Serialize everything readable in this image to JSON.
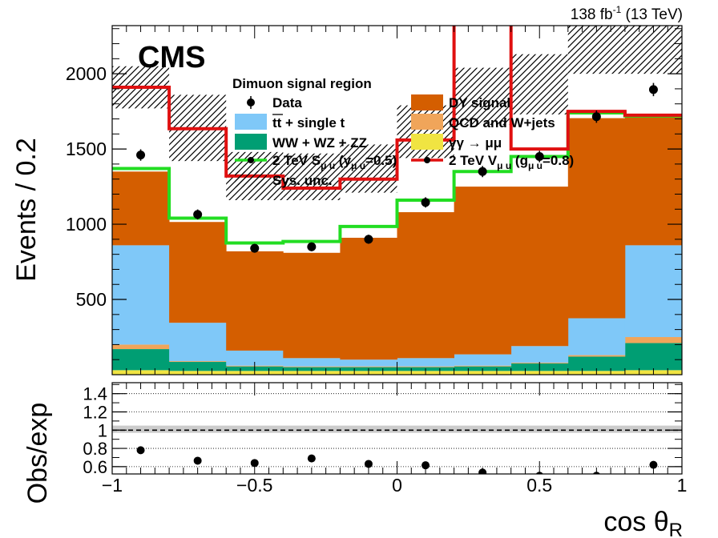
{
  "header": {
    "lumi": "138 fb",
    "lumi_sup": "-1",
    "energy": "(13 TeV)",
    "experiment": "CMS",
    "region": "Dimuon signal region"
  },
  "colors": {
    "dy": "#d45e00",
    "ttbar": "#7fc8f8",
    "diboson": "#009e73",
    "qcd": "#f0a55a",
    "gamgam": "#f0e442",
    "scalar": "#22dd22",
    "vector": "#e01010"
  },
  "chart_data": [
    {
      "type": "bar",
      "stacked": true,
      "bin_edges": [
        -1,
        -0.8,
        -0.6,
        -0.4,
        -0.2,
        0,
        0.2,
        0.4,
        0.6,
        0.8,
        1
      ],
      "xlim": [
        -1,
        1
      ],
      "ylim": [
        0,
        2320
      ],
      "yticks": [
        500,
        1000,
        1500,
        2000
      ],
      "ylabel": "Events / 0.2",
      "series": [
        {
          "key": "gamgam",
          "name": "γγ → μμ",
          "values": [
            30,
            25,
            25,
            25,
            25,
            25,
            25,
            25,
            25,
            30
          ]
        },
        {
          "key": "diboson",
          "name": "WW + WZ + ZZ",
          "values": [
            140,
            60,
            30,
            25,
            25,
            25,
            30,
            50,
            95,
            180
          ]
        },
        {
          "key": "qcd",
          "name": "QCD and W+jets",
          "values": [
            30,
            5,
            5,
            5,
            5,
            5,
            5,
            5,
            10,
            40
          ]
        },
        {
          "key": "ttbar",
          "name": "tt + single t",
          "values": [
            660,
            255,
            100,
            55,
            45,
            55,
            75,
            110,
            245,
            610
          ]
        },
        {
          "key": "dy",
          "name": "DY signal",
          "values": [
            490,
            670,
            660,
            700,
            810,
            970,
            1115,
            1060,
            1330,
            860
          ]
        }
      ],
      "data_points": {
        "name": "Data",
        "x": [
          -0.9,
          -0.7,
          -0.5,
          -0.3,
          -0.1,
          0.1,
          0.3,
          0.5,
          0.7,
          0.9
        ],
        "y": [
          1460,
          1065,
          840,
          850,
          900,
          1145,
          1350,
          1450,
          1715,
          1895
        ],
        "err": [
          38,
          33,
          29,
          29,
          30,
          34,
          37,
          38,
          41,
          44
        ]
      },
      "scalar_signal": {
        "name": "2 TeV S",
        "sub": "μ u",
        "coupling": "(y",
        "coupling_sub": "μ u",
        "coupling_val": "=0.5)",
        "values": [
          1370,
          1040,
          875,
          885,
          985,
          1160,
          1350,
          1450,
          1740,
          1720
        ]
      },
      "vector_signal": {
        "name": "2 TeV V",
        "sub": "μ u",
        "coupling": "(g",
        "coupling_sub": "μ u",
        "coupling_val": "=0.8)",
        "values": [
          1910,
          1635,
          1320,
          1240,
          1300,
          1560,
          3200,
          1500,
          1750,
          1725
        ]
      },
      "sys_unc": {
        "name": "Sys. unc.",
        "down": [
          1770,
          1420,
          1160,
          1160,
          1210,
          1440,
          1660,
          1730,
          2000,
          2000
        ],
        "up": [
          2050,
          1860,
          1480,
          1470,
          1530,
          1790,
          2040,
          2130,
          2320,
          2320
        ]
      },
      "legend_left": [
        "Data",
        "tt + single t",
        "WW + WZ + ZZ",
        "2 TeV S",
        "Sys. unc."
      ],
      "legend_right": [
        "DY signal",
        "QCD and W+jets",
        "γγ → μμ",
        "2 TeV V"
      ]
    },
    {
      "type": "scatter",
      "ylabel": "Obs/exp",
      "xlabel": "cos θ",
      "xlabel_sub": "R",
      "xlim": [
        -1,
        1
      ],
      "ylim": [
        0.52,
        1.52
      ],
      "yticks": [
        0.6,
        0.8,
        1,
        1.2,
        1.4
      ],
      "xticks": [
        -1,
        -0.5,
        0,
        0.5,
        1
      ],
      "x": [
        -0.9,
        -0.7,
        -0.5,
        -0.3,
        -0.1,
        0.1,
        0.3,
        0.5,
        0.7,
        0.9
      ],
      "y": [
        0.78,
        0.665,
        0.64,
        0.69,
        0.63,
        0.615,
        0.535,
        0.5,
        0.5,
        0.62
      ],
      "band": {
        "low": 0.97,
        "high": 1.05
      }
    }
  ]
}
